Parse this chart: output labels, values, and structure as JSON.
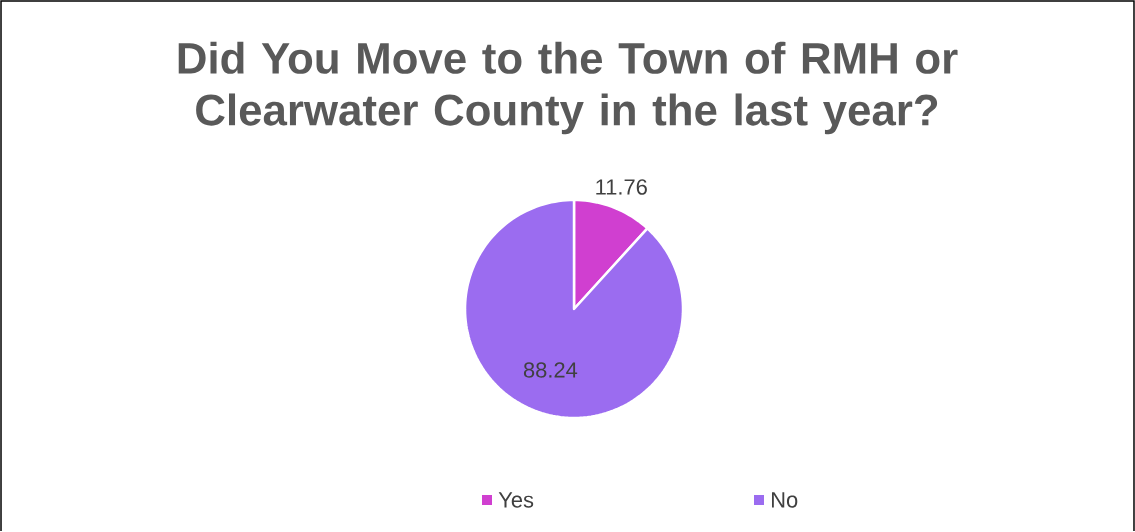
{
  "chart_data": {
    "type": "pie",
    "title": "Did You Move to the Town of RMH or Clearwater County in the last year?",
    "categories": [
      "Yes",
      "No"
    ],
    "values": [
      11.76,
      88.24
    ],
    "colors": [
      "#d03fd0",
      "#9b6cf0"
    ],
    "data_labels": true,
    "legend": "bottom"
  }
}
